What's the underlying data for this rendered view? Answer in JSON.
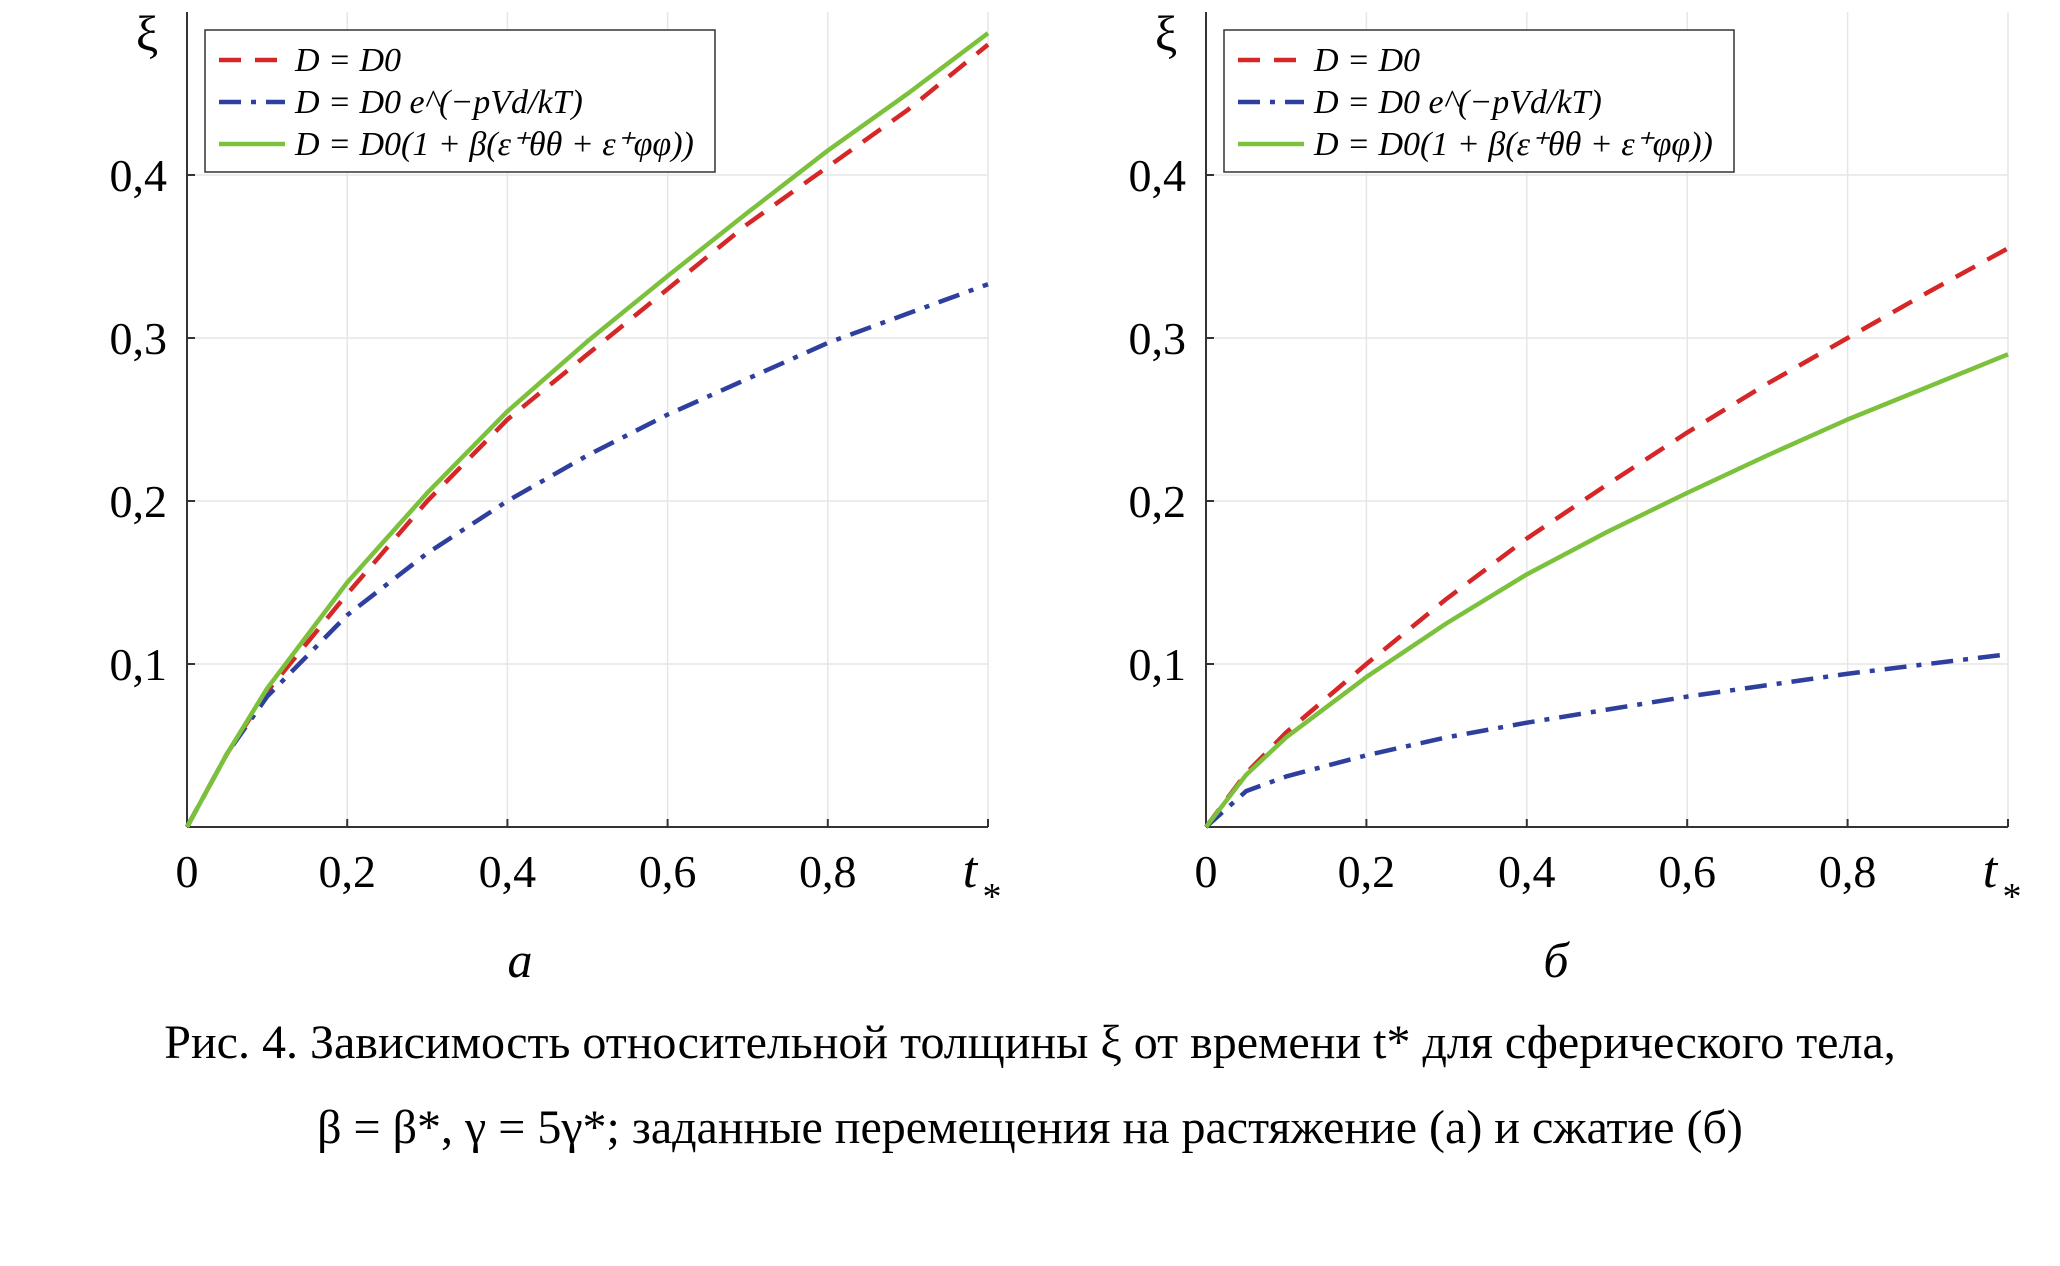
{
  "chart_data": [
    {
      "type": "line",
      "panel_label": "а",
      "ylabel": "ξ",
      "xlabel": "t",
      "xlabel_sub": "*",
      "xlim": [
        0,
        1
      ],
      "ylim": [
        0,
        0.5
      ],
      "xticks": [
        "0",
        "0,2",
        "0,4",
        "0,6",
        "0,8"
      ],
      "xtick_values": [
        0,
        0.2,
        0.4,
        0.6,
        0.8
      ],
      "yticks": [
        "0,1",
        "0,2",
        "0,3",
        "0,4"
      ],
      "ytick_values": [
        0.1,
        0.2,
        0.3,
        0.4
      ],
      "grid": true,
      "legend_position": "top-left",
      "x": [
        0,
        0.05,
        0.1,
        0.2,
        0.3,
        0.4,
        0.5,
        0.6,
        0.7,
        0.8,
        0.9,
        1.0
      ],
      "series": [
        {
          "name": "D = D0",
          "style": "dashed",
          "color": "#d62728",
          "values": [
            0,
            0.045,
            0.083,
            0.143,
            0.2,
            0.25,
            0.29,
            0.33,
            0.37,
            0.405,
            0.44,
            0.48
          ]
        },
        {
          "name": "D = D0 e^(−pVd/kT)",
          "style": "dashdot",
          "color": "#2e3f9e",
          "values": [
            0,
            0.045,
            0.08,
            0.13,
            0.168,
            0.2,
            0.228,
            0.253,
            0.275,
            0.297,
            0.315,
            0.333
          ]
        },
        {
          "name": "D = D0(1 + β(ε⁺θθ + ε⁺φφ))",
          "style": "solid",
          "color": "#7cc13c",
          "values": [
            0,
            0.045,
            0.085,
            0.15,
            0.205,
            0.255,
            0.298,
            0.338,
            0.377,
            0.415,
            0.45,
            0.487
          ]
        }
      ]
    },
    {
      "type": "line",
      "panel_label": "б",
      "ylabel": "ξ",
      "xlabel": "t",
      "xlabel_sub": "*",
      "xlim": [
        0,
        1
      ],
      "ylim": [
        0,
        0.5
      ],
      "xticks": [
        "0",
        "0,2",
        "0,4",
        "0,6",
        "0,8"
      ],
      "xtick_values": [
        0,
        0.2,
        0.4,
        0.6,
        0.8
      ],
      "yticks": [
        "0,1",
        "0,2",
        "0,3",
        "0,4"
      ],
      "ytick_values": [
        0.1,
        0.2,
        0.3,
        0.4
      ],
      "grid": true,
      "legend_position": "top-left",
      "x": [
        0,
        0.05,
        0.1,
        0.2,
        0.3,
        0.4,
        0.5,
        0.6,
        0.7,
        0.8,
        0.9,
        1.0
      ],
      "series": [
        {
          "name": "D = D0",
          "style": "dashed",
          "color": "#d62728",
          "values": [
            0,
            0.033,
            0.058,
            0.1,
            0.14,
            0.177,
            0.21,
            0.242,
            0.272,
            0.3,
            0.328,
            0.355
          ]
        },
        {
          "name": "D = D0 e^(−pVd/kT)",
          "style": "dashdot",
          "color": "#2e3f9e",
          "values": [
            0,
            0.022,
            0.031,
            0.044,
            0.055,
            0.064,
            0.072,
            0.08,
            0.087,
            0.094,
            0.1,
            0.106
          ]
        },
        {
          "name": "D = D0(1 + β(ε⁺θθ + ε⁺φφ))",
          "style": "solid",
          "color": "#7cc13c",
          "values": [
            0,
            0.032,
            0.055,
            0.092,
            0.125,
            0.155,
            0.181,
            0.205,
            0.228,
            0.25,
            0.27,
            0.29
          ]
        }
      ]
    }
  ],
  "caption": {
    "line1": "Рис. 4. Зависимость относительной толщины ξ от времени t* для сферического тела,",
    "line2": "β = β*, γ = 5γ*; заданные перемещения на растяжение (а) и сжатие (б)"
  }
}
